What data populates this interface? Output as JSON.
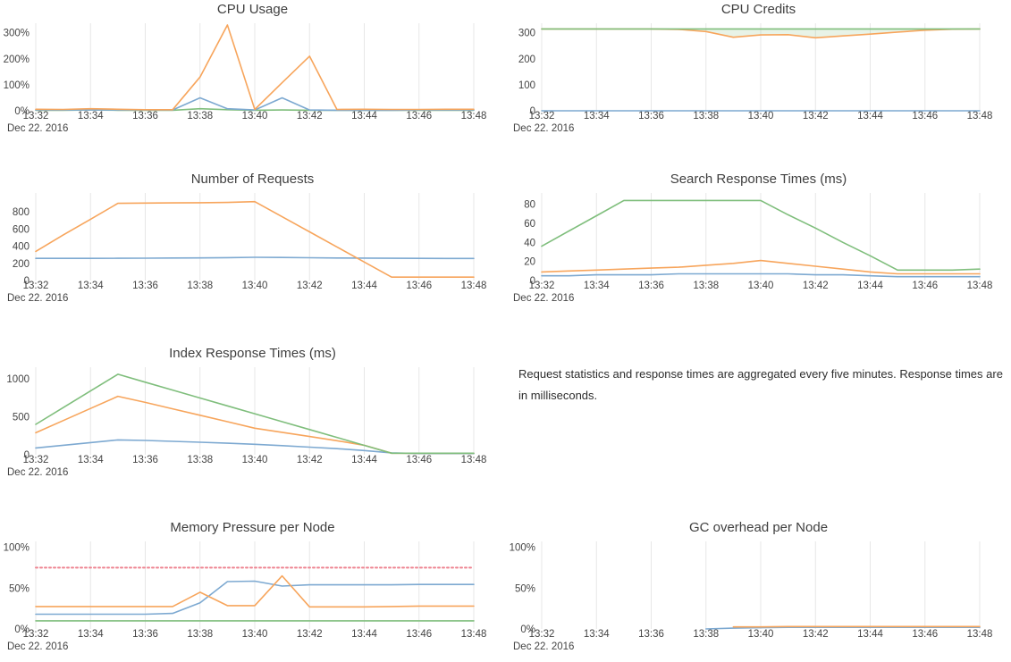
{
  "note": {
    "text": "Request statistics and response times are aggregated every five minutes. Response times are in milliseconds."
  },
  "date_label": "Dec 22. 2016",
  "x_ticks": [
    "13:32",
    "13:34",
    "13:36",
    "13:38",
    "13:40",
    "13:42",
    "13:44",
    "13:46",
    "13:48"
  ],
  "x_tick_minutes": [
    0,
    2,
    4,
    6,
    8,
    10,
    12,
    14,
    16
  ],
  "colors": {
    "blue": "#7DA9D1",
    "orange": "#F7A55C",
    "green": "#7FBE7C",
    "red": "#EE8390",
    "grid": "#E7E7E7",
    "tick_text": "#444444",
    "title_text": "#3F3F3F"
  },
  "chart_data": [
    {
      "type": "line",
      "title": "CPU Usage",
      "position": "row-1-left",
      "x_minutes": [
        0,
        1,
        2,
        3,
        4,
        5,
        6,
        7,
        8,
        9,
        10,
        11,
        12,
        13,
        14,
        15,
        16
      ],
      "xlabel": "Dec 22. 2016",
      "ymax": 330,
      "yticks": [
        {
          "v": 0,
          "label": "0%"
        },
        {
          "v": 100,
          "label": "100%"
        },
        {
          "v": 200,
          "label": "200%"
        },
        {
          "v": 300,
          "label": "300%"
        }
      ],
      "series": [
        {
          "name": "series-green",
          "color": "green",
          "values": [
            2,
            2,
            3,
            2,
            2,
            2,
            8,
            4,
            2,
            3,
            2,
            2,
            2,
            2,
            2,
            2,
            2
          ]
        },
        {
          "name": "series-blue",
          "color": "blue",
          "values": [
            3,
            3,
            3,
            3,
            3,
            3,
            50,
            8,
            3,
            50,
            3,
            2,
            2,
            2,
            3,
            3,
            3
          ]
        },
        {
          "name": "series-orange",
          "color": "orange",
          "values": [
            6,
            5,
            8,
            6,
            4,
            4,
            130,
            330,
            5,
            108,
            210,
            5,
            6,
            5,
            5,
            6,
            6
          ]
        }
      ]
    },
    {
      "type": "line",
      "title": "CPU Credits",
      "position": "row-1-right",
      "x_minutes": [
        0,
        1,
        2,
        3,
        4,
        5,
        6,
        7,
        8,
        9,
        10,
        11,
        12,
        13,
        14,
        15,
        16
      ],
      "xlabel": "Dec 22. 2016",
      "ymax": 330,
      "yticks": [
        {
          "v": 0,
          "label": "0"
        },
        {
          "v": 100,
          "label": "100"
        },
        {
          "v": 200,
          "label": "200"
        },
        {
          "v": 300,
          "label": "300"
        }
      ],
      "series": [
        {
          "name": "series-blue",
          "color": "blue",
          "values": [
            0,
            0,
            0,
            0,
            0,
            0,
            0,
            0,
            0,
            0,
            0,
            0,
            0,
            0,
            0,
            0,
            0
          ]
        },
        {
          "name": "series-orange",
          "color": "orange",
          "values": [
            315,
            315,
            315,
            315,
            315,
            313,
            305,
            283,
            292,
            293,
            281,
            288,
            295,
            303,
            310,
            314,
            315
          ]
        },
        {
          "name": "series-green",
          "color": "green",
          "fill_to": 1,
          "fill": "rgba(127,190,124,0.18)",
          "values": [
            315,
            315,
            315,
            315,
            315,
            315,
            315,
            315,
            315,
            315,
            315,
            315,
            315,
            315,
            315,
            315,
            315
          ]
        }
      ]
    },
    {
      "type": "line",
      "title": "Number of Requests",
      "position": "row-2-left",
      "x_minutes": [
        0,
        1,
        2,
        3,
        4,
        5,
        6,
        7,
        8,
        9,
        10,
        11,
        12,
        13,
        14,
        15,
        16
      ],
      "xlabel": "Dec 22. 2016",
      "ymax": 1000,
      "yticks": [
        {
          "v": 0,
          "label": "0"
        },
        {
          "v": 200,
          "label": "200"
        },
        {
          "v": 400,
          "label": "400"
        },
        {
          "v": 600,
          "label": "600"
        },
        {
          "v": 800,
          "label": "800"
        }
      ],
      "series": [
        {
          "name": "series-blue",
          "color": "blue",
          "values": [
            258,
            258,
            258,
            259,
            260,
            262,
            264,
            267,
            271,
            269,
            266,
            263,
            261,
            259,
            258,
            257,
            257
          ]
        },
        {
          "name": "series-orange",
          "color": "orange",
          "values": [
            340,
            530,
            715,
            900,
            903,
            905,
            907,
            910,
            920,
            744,
            568,
            392,
            216,
            40,
            40,
            40,
            40
          ]
        }
      ]
    },
    {
      "type": "line",
      "title": "Search Response Times (ms)",
      "position": "row-2-right",
      "x_minutes": [
        0,
        1,
        2,
        3,
        4,
        5,
        6,
        7,
        8,
        9,
        10,
        11,
        12,
        13,
        14,
        15,
        16
      ],
      "xlabel": "Dec 22. 2016",
      "ymax": 90,
      "yticks": [
        {
          "v": 0,
          "label": "0"
        },
        {
          "v": 20,
          "label": "20"
        },
        {
          "v": 40,
          "label": "40"
        },
        {
          "v": 60,
          "label": "60"
        },
        {
          "v": 80,
          "label": "80"
        }
      ],
      "series": [
        {
          "name": "series-blue",
          "color": "blue",
          "values": [
            5,
            5,
            6,
            6,
            6,
            7,
            7,
            7,
            7,
            7,
            6,
            6,
            5,
            4,
            4,
            4,
            4
          ]
        },
        {
          "name": "series-orange",
          "color": "orange",
          "values": [
            9,
            10,
            11,
            12,
            13,
            14,
            16,
            18,
            21,
            18,
            15,
            12,
            9,
            7,
            7,
            7,
            7
          ]
        },
        {
          "name": "series-green",
          "color": "green",
          "values": [
            36,
            52,
            68,
            84,
            84,
            84,
            84,
            84,
            84,
            69,
            55,
            40,
            26,
            11,
            11,
            11,
            12
          ]
        }
      ]
    },
    {
      "type": "line",
      "title": "Index Response Times (ms)",
      "position": "row-3-left",
      "x_minutes": [
        0,
        1,
        2,
        3,
        4,
        5,
        6,
        7,
        8,
        9,
        10,
        11,
        12,
        13,
        14,
        15,
        16
      ],
      "xlabel": "Dec 22. 2016",
      "ymax": 1130,
      "yticks": [
        {
          "v": 0,
          "label": "0"
        },
        {
          "v": 500,
          "label": "500"
        },
        {
          "v": 1000,
          "label": "1000"
        }
      ],
      "series": [
        {
          "name": "series-blue",
          "color": "blue",
          "values": [
            90,
            125,
            160,
            195,
            188,
            177,
            165,
            152,
            138,
            120,
            100,
            80,
            55,
            25,
            15,
            15,
            15
          ]
        },
        {
          "name": "series-orange",
          "color": "orange",
          "values": [
            290,
            450,
            610,
            770,
            690,
            605,
            520,
            435,
            350,
            295,
            240,
            185,
            125,
            20,
            20,
            20,
            20
          ]
        },
        {
          "name": "series-green",
          "color": "green",
          "values": [
            400,
            620,
            840,
            1060,
            956,
            852,
            748,
            644,
            540,
            436,
            332,
            228,
            124,
            20,
            20,
            20,
            20
          ]
        }
      ]
    },
    {
      "type": "line",
      "title": "Memory Pressure per Node",
      "position": "row-4-left",
      "x_minutes": [
        0,
        1,
        2,
        3,
        4,
        5,
        6,
        7,
        8,
        9,
        10,
        11,
        12,
        13,
        14,
        15,
        16
      ],
      "xlabel": "Dec 22. 2016",
      "ymax": 105,
      "yticks": [
        {
          "v": 0,
          "label": "0%"
        },
        {
          "v": 50,
          "label": "50%"
        },
        {
          "v": 100,
          "label": "100%"
        }
      ],
      "series": [
        {
          "name": "series-green",
          "color": "green",
          "values": [
            10,
            10,
            10,
            10,
            10,
            10,
            10,
            10,
            10,
            10,
            10,
            10,
            10,
            10,
            10,
            10,
            10
          ]
        },
        {
          "name": "series-blue",
          "color": "blue",
          "values": [
            18,
            18,
            18,
            18,
            18,
            19,
            32,
            58,
            58.5,
            52.5,
            54,
            54,
            54,
            54,
            54.5,
            54.5,
            54.5
          ]
        },
        {
          "name": "series-orange",
          "color": "orange",
          "values": [
            27.5,
            27.5,
            27.5,
            27.5,
            27.5,
            27.5,
            45,
            28.5,
            28.5,
            65,
            27,
            27,
            27,
            27.5,
            28,
            28,
            28
          ]
        },
        {
          "name": "threshold-red-dotted",
          "color": "red",
          "dashed": true,
          "values": [
            75,
            75,
            75,
            75,
            75,
            75,
            75,
            75,
            75,
            75,
            75,
            75,
            75,
            75,
            75,
            75,
            75
          ]
        }
      ]
    },
    {
      "type": "line",
      "title": "GC overhead per Node",
      "position": "row-4-right",
      "x_minutes": [
        0,
        1,
        2,
        3,
        4,
        5,
        6,
        7,
        8,
        9,
        10,
        11,
        12,
        13,
        14,
        15,
        16
      ],
      "xlabel": "Dec 22. 2016",
      "ymax": 105,
      "yticks": [
        {
          "v": 0,
          "label": "0%"
        },
        {
          "v": 50,
          "label": "50%"
        },
        {
          "v": 100,
          "label": "100%"
        }
      ],
      "series": [
        {
          "name": "series-blue",
          "color": "blue",
          "values": [
            null,
            null,
            null,
            null,
            null,
            null,
            0,
            1,
            1.5,
            2,
            2,
            2,
            2,
            2,
            2,
            2,
            2
          ]
        },
        {
          "name": "series-orange",
          "color": "orange",
          "values": [
            null,
            null,
            null,
            null,
            null,
            null,
            null,
            2.5,
            2.5,
            3,
            3,
            3,
            3,
            3,
            3,
            3,
            3
          ]
        }
      ]
    }
  ]
}
